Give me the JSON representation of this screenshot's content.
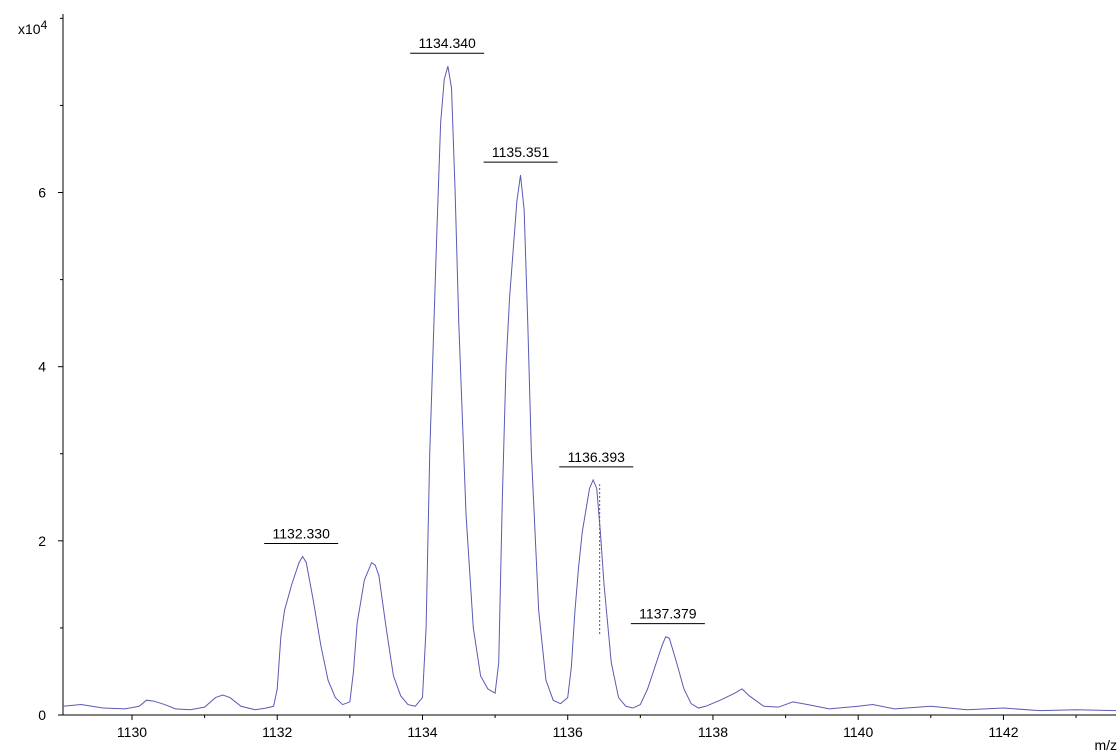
{
  "chart_data": {
    "type": "line",
    "title": "",
    "xlabel": "m/z",
    "ylabel": "",
    "y_multiplier_label": "x10",
    "y_multiplier_exponent": "4",
    "xlim": [
      1129.05,
      1143.55
    ],
    "ylim": [
      0,
      8.05
    ],
    "x_ticks": [
      1130,
      1132,
      1134,
      1136,
      1138,
      1140,
      1142
    ],
    "y_ticks": [
      0,
      2,
      4,
      6
    ],
    "grid": false,
    "line_color": "#5a5ab4",
    "series": [
      {
        "x": [
          1129.05,
          1129.3,
          1129.6,
          1129.9,
          1130.1,
          1130.2,
          1130.3,
          1130.45,
          1130.6,
          1130.8,
          1131.0,
          1131.15,
          1131.25,
          1131.35,
          1131.5,
          1131.7,
          1131.85,
          1131.95,
          1132.0,
          1132.05,
          1132.1,
          1132.2,
          1132.3,
          1132.35,
          1132.4,
          1132.5,
          1132.6,
          1132.7,
          1132.8,
          1132.9,
          1133.0,
          1133.05,
          1133.1,
          1133.15,
          1133.2,
          1133.3,
          1133.35,
          1133.4,
          1133.5,
          1133.6,
          1133.7,
          1133.8,
          1133.9,
          1134.0,
          1134.05,
          1134.1,
          1134.15,
          1134.2,
          1134.25,
          1134.3,
          1134.35,
          1134.4,
          1134.45,
          1134.5,
          1134.6,
          1134.7,
          1134.8,
          1134.9,
          1135.0,
          1135.05,
          1135.1,
          1135.15,
          1135.2,
          1135.3,
          1135.35,
          1135.4,
          1135.45,
          1135.5,
          1135.6,
          1135.7,
          1135.8,
          1135.9,
          1136.0,
          1136.05,
          1136.1,
          1136.15,
          1136.2,
          1136.3,
          1136.35,
          1136.4,
          1136.45,
          1136.5,
          1136.6,
          1136.7,
          1136.8,
          1136.9,
          1137.0,
          1137.1,
          1137.2,
          1137.3,
          1137.35,
          1137.4,
          1137.5,
          1137.6,
          1137.7,
          1137.8,
          1137.9,
          1138.1,
          1138.3,
          1138.4,
          1138.5,
          1138.7,
          1138.9,
          1139.1,
          1139.3,
          1139.6,
          1140.0,
          1140.2,
          1140.5,
          1141.0,
          1141.5,
          1142.0,
          1142.5,
          1143.0,
          1143.55
        ],
        "y": [
          0.1,
          0.12,
          0.08,
          0.07,
          0.1,
          0.17,
          0.16,
          0.12,
          0.07,
          0.06,
          0.09,
          0.2,
          0.23,
          0.2,
          0.1,
          0.06,
          0.08,
          0.1,
          0.3,
          0.9,
          1.2,
          1.5,
          1.75,
          1.82,
          1.75,
          1.3,
          0.8,
          0.4,
          0.2,
          0.12,
          0.15,
          0.5,
          1.05,
          1.3,
          1.55,
          1.75,
          1.72,
          1.6,
          1.0,
          0.45,
          0.22,
          0.12,
          0.1,
          0.2,
          1.0,
          3.0,
          4.3,
          5.6,
          6.8,
          7.3,
          7.45,
          7.2,
          6.0,
          4.5,
          2.3,
          1.0,
          0.45,
          0.3,
          0.25,
          0.6,
          2.5,
          4.0,
          4.8,
          5.9,
          6.2,
          5.8,
          4.5,
          3.0,
          1.2,
          0.4,
          0.17,
          0.13,
          0.2,
          0.55,
          1.2,
          1.7,
          2.1,
          2.6,
          2.7,
          2.6,
          2.1,
          1.5,
          0.6,
          0.2,
          0.1,
          0.08,
          0.12,
          0.3,
          0.55,
          0.8,
          0.9,
          0.88,
          0.6,
          0.3,
          0.13,
          0.08,
          0.1,
          0.17,
          0.25,
          0.3,
          0.22,
          0.1,
          0.09,
          0.15,
          0.12,
          0.07,
          0.1,
          0.12,
          0.07,
          0.1,
          0.06,
          0.08,
          0.05,
          0.06,
          0.05
        ]
      }
    ],
    "peak_labels": [
      {
        "text": "1132.330",
        "x": 1132.33,
        "y": 1.82
      },
      {
        "text": "1134.340",
        "x": 1134.34,
        "y": 7.45
      },
      {
        "text": "1135.351",
        "x": 1135.351,
        "y": 6.2
      },
      {
        "text": "1136.393",
        "x": 1136.393,
        "y": 2.7
      },
      {
        "text": "1137.379",
        "x": 1137.379,
        "y": 0.9
      }
    ],
    "marker_line": {
      "x": 1136.44,
      "y_from": 0.93,
      "y_to": 2.65
    }
  }
}
